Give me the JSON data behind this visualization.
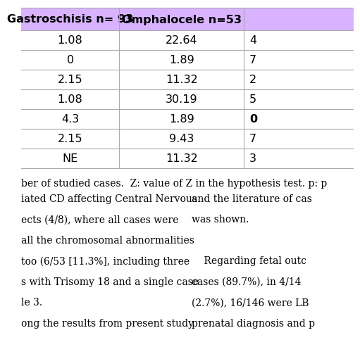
{
  "header_col1": "Gastroschisis n= 93",
  "header_col2": "Omphalocele n=53",
  "header_col3": "",
  "header_bg": "#d9b3ff",
  "col1_values": [
    "1.08",
    "0",
    "2.15",
    "1.08",
    "4.3",
    "2.15",
    "NE"
  ],
  "col2_values": [
    "22.64",
    "1.89",
    "11.32",
    "30.19",
    "1.89",
    "9.43",
    "11.32"
  ],
  "col3_values": [
    "4",
    "7",
    "2",
    "5",
    "0",
    "7",
    "3"
  ],
  "col3_bold_row": 4,
  "row_line_color": "#aaaaaa",
  "font_size_header": 11.5,
  "font_size_body": 11.5,
  "footer_text": "ber of studied cases.  Z: value of Z in the hypothesis test. p: p",
  "body_left_lines": [
    "iated CD affecting Central Nervous",
    "ects (4/8), where all cases were",
    "all the chromosomal abnormalities",
    "too (6/53 [11.3%], including three",
    "s with Trisomy 18 and a single case",
    "le 3.",
    "ong the results from present study"
  ],
  "body_right_lines": [
    "and the literature of cas",
    "was shown.",
    "",
    "    Regarding fetal outc",
    "cases (89.7%), in 4/14",
    "(2.7%), 16/146 were LB",
    "prenatal diagnosis and p"
  ],
  "fig_bg": "#ffffff"
}
